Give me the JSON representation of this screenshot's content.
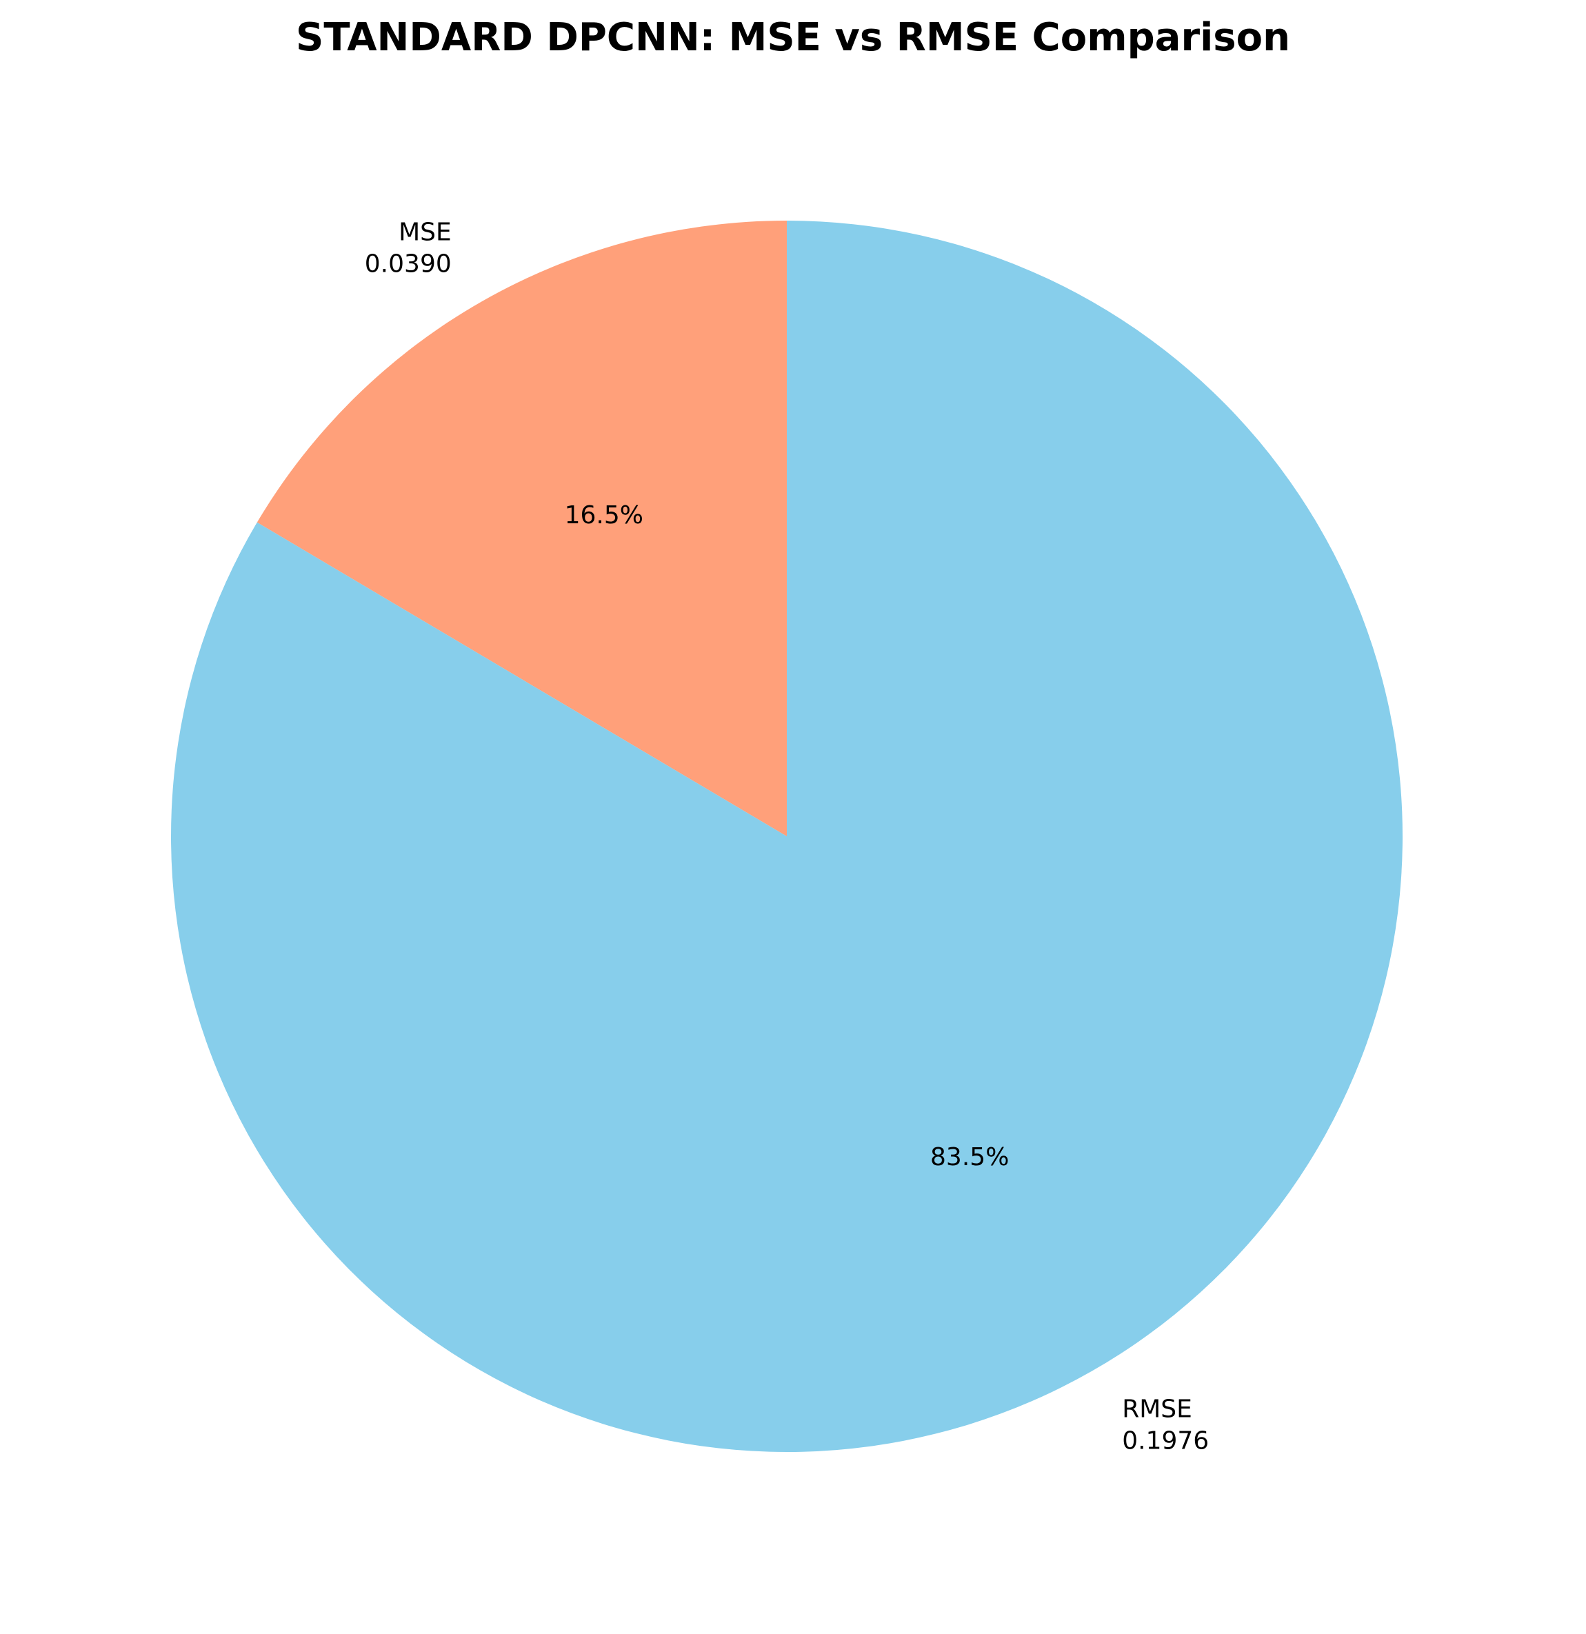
{
  "chart_data": {
    "type": "pie",
    "title": "STANDARD DPCNN: MSE vs RMSE Comparison",
    "categories": [
      "MSE",
      "RMSE"
    ],
    "values": [
      0.039,
      0.1976
    ],
    "value_labels": [
      "0.0390",
      "0.1976"
    ],
    "percent_labels": [
      "16.5%",
      "83.5%"
    ],
    "colors": [
      "#FFA07A",
      "#87CEEB"
    ],
    "start_angle_deg": 90,
    "direction": "counterclockwise"
  }
}
